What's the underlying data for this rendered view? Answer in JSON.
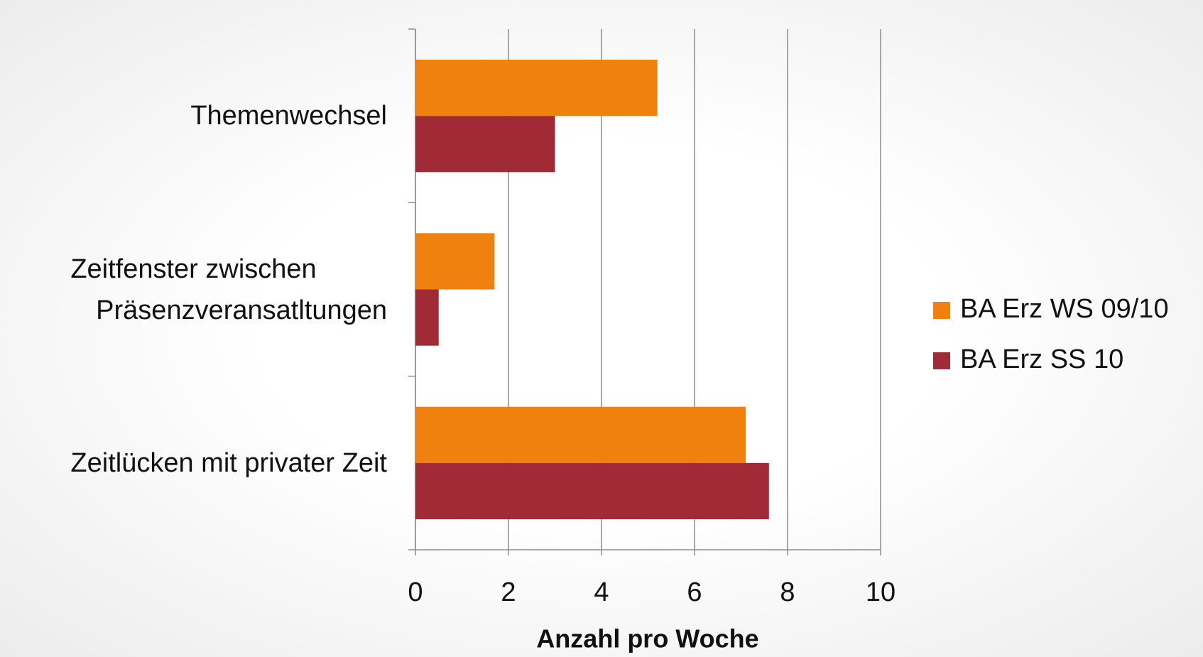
{
  "chart_data": {
    "type": "bar",
    "orientation": "horizontal",
    "categories": [
      "Themenwechsel",
      "Zeitfenster zwischen Präsenzveransatltungen",
      "Zeitlücken mit privater Zeit"
    ],
    "series": [
      {
        "name": "BA Erz WS 09/10",
        "color": "#f0810f",
        "values": [
          5.2,
          1.7,
          7.1
        ]
      },
      {
        "name": "BA Erz SS 10",
        "color": "#a12a37",
        "values": [
          3.0,
          0.5,
          7.6
        ]
      }
    ],
    "x_label": "Anzahl pro Woche",
    "xlim": [
      0,
      10
    ],
    "xticks": [
      0,
      2,
      4,
      6,
      8,
      10
    ],
    "grid": true,
    "legend": "right"
  }
}
